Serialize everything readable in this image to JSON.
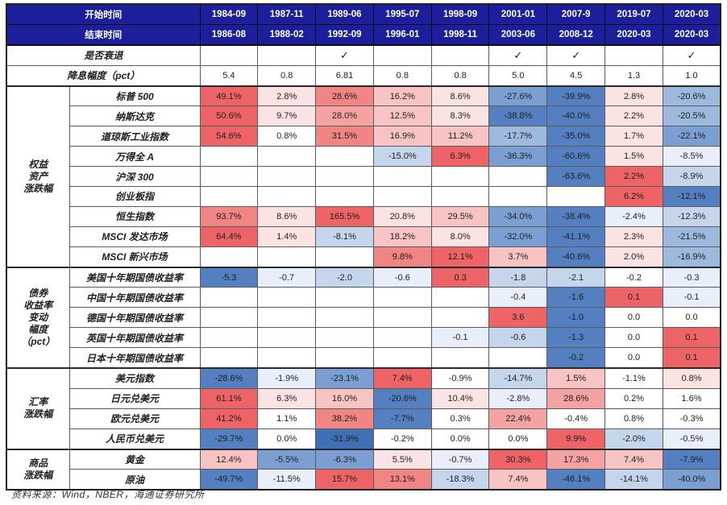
{
  "palette": {
    "header_bg": "#1c1e9c",
    "header_text": "#ffffff",
    "r5": "#ee6466",
    "r4": "#f18584",
    "r3": "#f4a2a2",
    "r2": "#f7c3c3",
    "r1": "#fbe3e3",
    "w": "#ffffff",
    "b1": "#e9effa",
    "b2": "#c5d5ec",
    "b3": "#9cbade",
    "b4": "#7b9fd2",
    "b5": "#5480c1",
    "b6": "#3f70b5"
  },
  "header": {
    "start_label": "开始时间",
    "end_label": "结束时间",
    "start_dates": [
      "1984-09",
      "1987-11",
      "1989-06",
      "1995-07",
      "1998-09",
      "2001-01",
      "2007-9",
      "2019-07",
      "2020-03"
    ],
    "end_dates": [
      "1986-08",
      "1988-02",
      "1992-09",
      "1996-01",
      "1998-11",
      "2003-06",
      "2008-12",
      "2020-03",
      "2020-03"
    ]
  },
  "meta_rows": [
    {
      "label": "是否衰退",
      "values": [
        "",
        "",
        "✓",
        "",
        "",
        "✓",
        "✓",
        "",
        "✓"
      ]
    },
    {
      "label": "降息幅度（pct）",
      "values": [
        "5.4",
        "0.8",
        "6.81",
        "0.8",
        "0.8",
        "5.0",
        "4.5",
        "1.3",
        "1.0"
      ]
    }
  ],
  "groups": [
    {
      "label_lines": [
        "权益",
        "资产",
        "涨跌幅"
      ],
      "rows": [
        {
          "label": "标普 500",
          "cells": [
            {
              "v": "49.1%",
              "c": "r5"
            },
            {
              "v": "2.8%",
              "c": "r1"
            },
            {
              "v": "28.6%",
              "c": "r4"
            },
            {
              "v": "16.2%",
              "c": "r2"
            },
            {
              "v": "8.6%",
              "c": "r1"
            },
            {
              "v": "-27.6%",
              "c": "b4"
            },
            {
              "v": "-39.9%",
              "c": "b5"
            },
            {
              "v": "2.8%",
              "c": "r1"
            },
            {
              "v": "-20.6%",
              "c": "b3"
            }
          ]
        },
        {
          "label": "纳斯达克",
          "cells": [
            {
              "v": "50.6%",
              "c": "r5"
            },
            {
              "v": "9.7%",
              "c": "r1"
            },
            {
              "v": "28.0%",
              "c": "r3"
            },
            {
              "v": "12.5%",
              "c": "r2"
            },
            {
              "v": "8.3%",
              "c": "r1"
            },
            {
              "v": "-38.8%",
              "c": "b5"
            },
            {
              "v": "-40.0%",
              "c": "b5"
            },
            {
              "v": "2.2%",
              "c": "r1"
            },
            {
              "v": "-20.5%",
              "c": "b3"
            }
          ]
        },
        {
          "label": "道琼斯工业指数",
          "cells": [
            {
              "v": "54.6%",
              "c": "r5"
            },
            {
              "v": "0.8%",
              "c": "w"
            },
            {
              "v": "31.5%",
              "c": "r4"
            },
            {
              "v": "16.9%",
              "c": "r2"
            },
            {
              "v": "11.2%",
              "c": "r2"
            },
            {
              "v": "-17.7%",
              "c": "b3"
            },
            {
              "v": "-35.0%",
              "c": "b5"
            },
            {
              "v": "1.7%",
              "c": "r1"
            },
            {
              "v": "-22.1%",
              "c": "b4"
            }
          ]
        },
        {
          "label": "万得全 A",
          "cells": [
            null,
            null,
            null,
            {
              "v": "-15.0%",
              "c": "b2"
            },
            {
              "v": "6.3%",
              "c": "r5"
            },
            {
              "v": "-36.3%",
              "c": "b4"
            },
            {
              "v": "-60.6%",
              "c": "b5"
            },
            {
              "v": "1.5%",
              "c": "r1"
            },
            {
              "v": "-8.5%",
              "c": "b1"
            }
          ]
        },
        {
          "label": "沪深 300",
          "cells": [
            null,
            null,
            null,
            null,
            null,
            null,
            {
              "v": "-63.6%",
              "c": "b5"
            },
            {
              "v": "2.2%",
              "c": "r5"
            },
            {
              "v": "-8.9%",
              "c": "b2"
            }
          ]
        },
        {
          "label": "创业板指",
          "cells": [
            null,
            null,
            null,
            null,
            null,
            null,
            null,
            {
              "v": "6.2%",
              "c": "r5"
            },
            {
              "v": "-12.1%",
              "c": "b5"
            }
          ]
        },
        {
          "label": "恒生指数",
          "cells": [
            {
              "v": "93.7%",
              "c": "r4"
            },
            {
              "v": "8.6%",
              "c": "r1"
            },
            {
              "v": "165.5%",
              "c": "r5"
            },
            {
              "v": "20.8%",
              "c": "r1"
            },
            {
              "v": "29.5%",
              "c": "r2"
            },
            {
              "v": "-34.0%",
              "c": "b4"
            },
            {
              "v": "-38.4%",
              "c": "b5"
            },
            {
              "v": "-2.4%",
              "c": "b1"
            },
            {
              "v": "-12.3%",
              "c": "b2"
            }
          ]
        },
        {
          "label": "MSCI 发达市场",
          "cells": [
            {
              "v": "64.4%",
              "c": "r5"
            },
            {
              "v": "1.4%",
              "c": "r1"
            },
            {
              "v": "-8.1%",
              "c": "b2"
            },
            {
              "v": "18.2%",
              "c": "r2"
            },
            {
              "v": "8.0%",
              "c": "r1"
            },
            {
              "v": "-32.0%",
              "c": "b4"
            },
            {
              "v": "-41.1%",
              "c": "b5"
            },
            {
              "v": "2.3%",
              "c": "r1"
            },
            {
              "v": "-21.5%",
              "c": "b3"
            }
          ]
        },
        {
          "label": "MSCI 新兴市场",
          "cells": [
            null,
            null,
            null,
            {
              "v": "9.8%",
              "c": "r4"
            },
            {
              "v": "12.1%",
              "c": "r5"
            },
            {
              "v": "3.7%",
              "c": "r2"
            },
            {
              "v": "-40.6%",
              "c": "b5"
            },
            {
              "v": "2.0%",
              "c": "r1"
            },
            {
              "v": "-16.9%",
              "c": "b3"
            }
          ]
        }
      ]
    },
    {
      "label_lines": [
        "债券",
        "收益率",
        "变动",
        "幅度",
        "（pct）"
      ],
      "rows": [
        {
          "label": "美国十年期国债收益率",
          "cells": [
            {
              "v": "-5.3",
              "c": "b5"
            },
            {
              "v": "-0.7",
              "c": "b1"
            },
            {
              "v": "-2.0",
              "c": "b2"
            },
            {
              "v": "-0.6",
              "c": "b1"
            },
            {
              "v": "0.3",
              "c": "r5"
            },
            {
              "v": "-1.8",
              "c": "b2"
            },
            {
              "v": "-2.1",
              "c": "b2"
            },
            {
              "v": "-0.2",
              "c": "w"
            },
            {
              "v": "-0.3",
              "c": "b1"
            }
          ]
        },
        {
          "label": "中国十年期国债收益率",
          "cells": [
            null,
            null,
            null,
            null,
            null,
            {
              "v": "-0.4",
              "c": "b1"
            },
            {
              "v": "-1.6",
              "c": "b5"
            },
            {
              "v": "0.1",
              "c": "r5"
            },
            {
              "v": "-0.1",
              "c": "b1"
            }
          ]
        },
        {
          "label": "德国十年期国债收益率",
          "cells": [
            null,
            null,
            null,
            null,
            null,
            {
              "v": "3.6",
              "c": "r5"
            },
            {
              "v": "-1.0",
              "c": "b5"
            },
            {
              "v": "0.0",
              "c": "w"
            },
            {
              "v": "0.0",
              "c": "w"
            }
          ]
        },
        {
          "label": "英国十年期国债收益率",
          "cells": [
            null,
            null,
            null,
            null,
            {
              "v": "-0.1",
              "c": "b1"
            },
            {
              "v": "-0.6",
              "c": "b2"
            },
            {
              "v": "-1.3",
              "c": "b5"
            },
            {
              "v": "0.0",
              "c": "w"
            },
            {
              "v": "0.1",
              "c": "r5"
            }
          ]
        },
        {
          "label": "日本十年期国债收益率",
          "cells": [
            null,
            null,
            null,
            null,
            null,
            null,
            {
              "v": "-0.2",
              "c": "b5"
            },
            {
              "v": "0.0",
              "c": "w"
            },
            {
              "v": "0.1",
              "c": "r5"
            }
          ]
        }
      ]
    },
    {
      "label_lines": [
        "汇率",
        "涨跌幅"
      ],
      "rows": [
        {
          "label": "美元指数",
          "cells": [
            {
              "v": "-28.6%",
              "c": "b5"
            },
            {
              "v": "-1.9%",
              "c": "b1"
            },
            {
              "v": "-23.1%",
              "c": "b4"
            },
            {
              "v": "7.4%",
              "c": "r5"
            },
            {
              "v": "-0.9%",
              "c": "w"
            },
            {
              "v": "-14.7%",
              "c": "b2"
            },
            {
              "v": "1.5%",
              "c": "r2"
            },
            {
              "v": "-1.1%",
              "c": "w"
            },
            {
              "v": "0.8%",
              "c": "r1"
            }
          ]
        },
        {
          "label": "日元兑美元",
          "cells": [
            {
              "v": "61.1%",
              "c": "r5"
            },
            {
              "v": "6.3%",
              "c": "r1"
            },
            {
              "v": "16.0%",
              "c": "r2"
            },
            {
              "v": "-20.6%",
              "c": "b5"
            },
            {
              "v": "10.4%",
              "c": "r1"
            },
            {
              "v": "-2.8%",
              "c": "b1"
            },
            {
              "v": "28.6%",
              "c": "r3"
            },
            {
              "v": "0.2%",
              "c": "w"
            },
            {
              "v": "1.6%",
              "c": "w"
            }
          ]
        },
        {
          "label": "欧元兑美元",
          "cells": [
            {
              "v": "41.2%",
              "c": "r5"
            },
            {
              "v": "1.1%",
              "c": "w"
            },
            {
              "v": "38.2%",
              "c": "r4"
            },
            {
              "v": "-7.7%",
              "c": "b5"
            },
            {
              "v": "0.3%",
              "c": "w"
            },
            {
              "v": "22.4%",
              "c": "r3"
            },
            {
              "v": "-0.4%",
              "c": "w"
            },
            {
              "v": "0.8%",
              "c": "w"
            },
            {
              "v": "-0.3%",
              "c": "w"
            }
          ]
        },
        {
          "label": "人民币兑美元",
          "cells": [
            {
              "v": "-29.7%",
              "c": "b5"
            },
            {
              "v": "0.0%",
              "c": "w"
            },
            {
              "v": "-31.9%",
              "c": "b6"
            },
            {
              "v": "-0.2%",
              "c": "w"
            },
            {
              "v": "0.0%",
              "c": "w"
            },
            {
              "v": "0.0%",
              "c": "w"
            },
            {
              "v": "9.9%",
              "c": "r5"
            },
            {
              "v": "-2.0%",
              "c": "b2"
            },
            {
              "v": "-0.5%",
              "c": "b1"
            }
          ]
        }
      ]
    },
    {
      "label_lines": [
        "商品",
        "涨跌幅"
      ],
      "rows": [
        {
          "label": "黄金",
          "cells": [
            {
              "v": "12.4%",
              "c": "r2"
            },
            {
              "v": "-5.5%",
              "c": "b4"
            },
            {
              "v": "-6.3%",
              "c": "b4"
            },
            {
              "v": "5.5%",
              "c": "r1"
            },
            {
              "v": "-0.7%",
              "c": "b1"
            },
            {
              "v": "30.3%",
              "c": "r5"
            },
            {
              "v": "17.3%",
              "c": "r3"
            },
            {
              "v": "7.4%",
              "c": "r2"
            },
            {
              "v": "-7.9%",
              "c": "b5"
            }
          ]
        },
        {
          "label": "原油",
          "cells": [
            {
              "v": "-49.7%",
              "c": "b5"
            },
            {
              "v": "-11.5%",
              "c": "b1"
            },
            {
              "v": "15.7%",
              "c": "r5"
            },
            {
              "v": "13.1%",
              "c": "r4"
            },
            {
              "v": "-18.3%",
              "c": "b2"
            },
            {
              "v": "7.4%",
              "c": "r2"
            },
            {
              "v": "-46.1%",
              "c": "b5"
            },
            {
              "v": "-14.1%",
              "c": "b2"
            },
            {
              "v": "-40.0%",
              "c": "b4"
            }
          ]
        }
      ]
    }
  ],
  "footer": {
    "text": "资料来源：Wind，NBER，海通证券研究所"
  }
}
